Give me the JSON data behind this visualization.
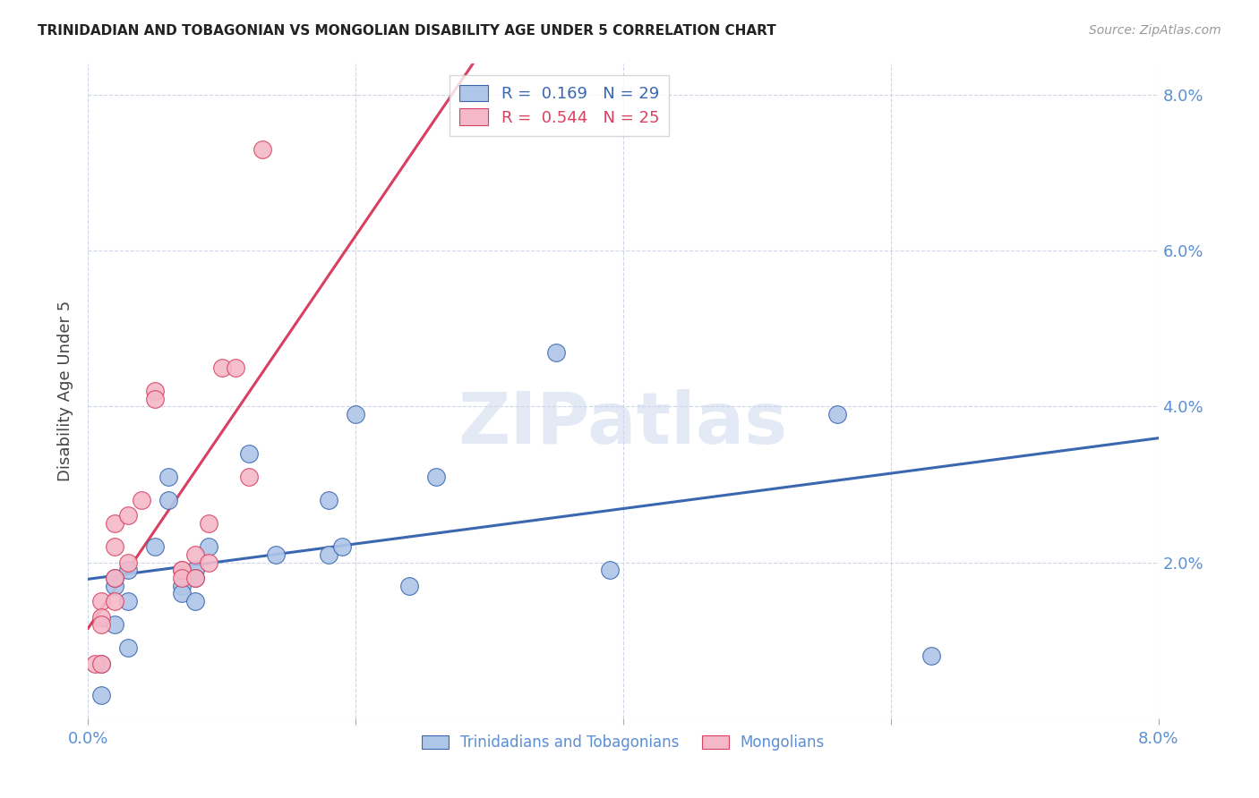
{
  "title": "TRINIDADIAN AND TOBAGONIAN VS MONGOLIAN DISABILITY AGE UNDER 5 CORRELATION CHART",
  "source": "Source: ZipAtlas.com",
  "ylabel": "Disability Age Under 5",
  "watermark": "ZIPatlas",
  "series1_color": "#aec6e8",
  "series2_color": "#f4b8c8",
  "trendline1_color": "#3a67b0",
  "trendline2_color": "#d94060",
  "ref_line_color": "#e8a0b0",
  "grid_color": "#ccd6e8",
  "background_color": "#ffffff",
  "tick_label_color": "#5b8fd4",
  "title_color": "#222222",
  "source_color": "#999999",
  "ylabel_color": "#444444",
  "scatter1_x": [
    0.001,
    0.001,
    0.002,
    0.002,
    0.002,
    0.003,
    0.003,
    0.003,
    0.005,
    0.006,
    0.006,
    0.007,
    0.007,
    0.008,
    0.008,
    0.008,
    0.009,
    0.012,
    0.014,
    0.018,
    0.018,
    0.019,
    0.02,
    0.024,
    0.026,
    0.035,
    0.039,
    0.056,
    0.063
  ],
  "scatter1_y": [
    0.007,
    0.003,
    0.017,
    0.018,
    0.012,
    0.019,
    0.015,
    0.009,
    0.022,
    0.031,
    0.028,
    0.017,
    0.016,
    0.019,
    0.018,
    0.015,
    0.022,
    0.034,
    0.021,
    0.028,
    0.021,
    0.022,
    0.039,
    0.017,
    0.031,
    0.047,
    0.019,
    0.039,
    0.008
  ],
  "scatter2_x": [
    0.0005,
    0.001,
    0.001,
    0.001,
    0.001,
    0.002,
    0.002,
    0.002,
    0.002,
    0.003,
    0.003,
    0.004,
    0.005,
    0.005,
    0.007,
    0.007,
    0.007,
    0.008,
    0.008,
    0.009,
    0.009,
    0.01,
    0.011,
    0.012,
    0.013
  ],
  "scatter2_y": [
    0.007,
    0.015,
    0.013,
    0.012,
    0.007,
    0.025,
    0.022,
    0.018,
    0.015,
    0.026,
    0.02,
    0.028,
    0.042,
    0.041,
    0.019,
    0.019,
    0.018,
    0.021,
    0.018,
    0.025,
    0.02,
    0.045,
    0.045,
    0.031,
    0.073
  ],
  "xmin": 0.0,
  "xmax": 0.08,
  "ymin": 0.0,
  "ymax": 0.084,
  "yticks": [
    0.0,
    0.02,
    0.04,
    0.06,
    0.08
  ],
  "ytick_labels": [
    "",
    "2.0%",
    "4.0%",
    "6.0%",
    "8.0%"
  ],
  "xticks": [
    0.0,
    0.02,
    0.04,
    0.06,
    0.08
  ],
  "xtick_labels": [
    "0.0%",
    "",
    "",
    "",
    "8.0%"
  ],
  "legend_R1": "R = ",
  "legend_V1": "0.169",
  "legend_N1": "N = 29",
  "legend_R2": "R = ",
  "legend_V2": "0.544",
  "legend_N2": "N = 25"
}
